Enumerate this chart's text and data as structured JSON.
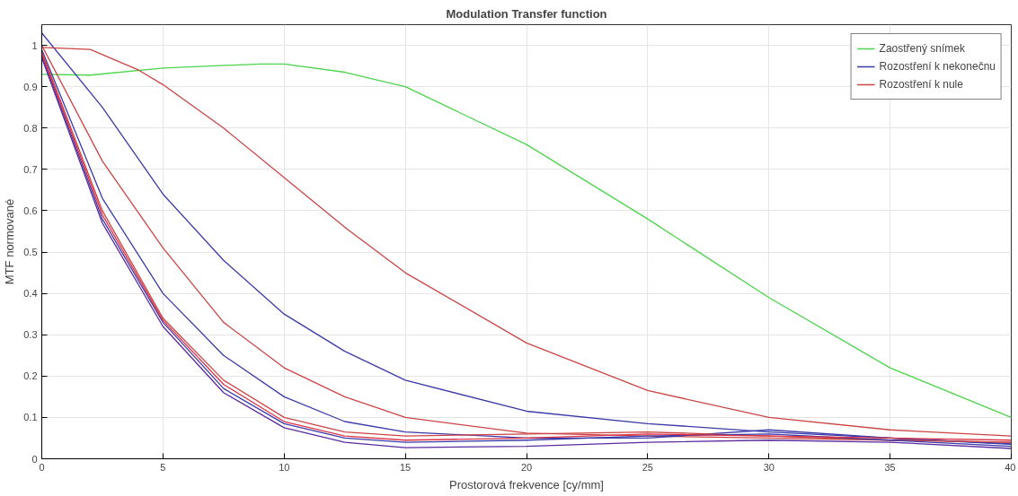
{
  "chart_data": {
    "type": "line",
    "title": "Modulation Transfer function",
    "xlabel": "Prostorová frekvence [cy/mm]",
    "ylabel": "MTF normované",
    "x": [
      0,
      2.5,
      5,
      7.5,
      10,
      12.5,
      15,
      20,
      25,
      30,
      35,
      40
    ],
    "series": [
      {
        "name": "Zaostřený snímek",
        "color": "#4cd44c",
        "x": [
          0,
          2,
          5,
          9,
          10,
          12.5,
          15,
          20,
          25,
          30,
          35,
          40
        ],
        "values": [
          0.93,
          0.928,
          0.945,
          0.955,
          0.955,
          0.935,
          0.9,
          0.76,
          0.58,
          0.39,
          0.22,
          0.1
        ]
      },
      {
        "name": "Rozostření k nekonečnu",
        "color": "#3a3aaa",
        "values": [
          1.03,
          0.85,
          0.64,
          0.48,
          0.35,
          0.26,
          0.19,
          0.115,
          0.085,
          0.065,
          0.05,
          0.035
        ]
      },
      {
        "name": "Rozostření k nule",
        "color": "#cc4444",
        "x": [
          0,
          2,
          4,
          5,
          7.5,
          10,
          12.5,
          15,
          20,
          25,
          30,
          35,
          40
        ],
        "values": [
          0.995,
          0.99,
          0.94,
          0.905,
          0.8,
          0.68,
          0.56,
          0.45,
          0.28,
          0.165,
          0.1,
          0.07,
          0.055
        ]
      },
      {
        "color": "#cc4444",
        "values": [
          1.0,
          0.72,
          0.51,
          0.33,
          0.22,
          0.15,
          0.1,
          0.062,
          0.055,
          0.05,
          0.045,
          0.04
        ]
      },
      {
        "color": "#3a3aaa",
        "values": [
          0.99,
          0.63,
          0.4,
          0.25,
          0.15,
          0.09,
          0.065,
          0.05,
          0.05,
          0.07,
          0.05,
          0.036
        ]
      },
      {
        "color": "#cc4444",
        "values": [
          0.985,
          0.6,
          0.34,
          0.19,
          0.1,
          0.065,
          0.055,
          0.06,
          0.065,
          0.055,
          0.045,
          0.04
        ]
      },
      {
        "color": "#3a3aaa",
        "values": [
          0.975,
          0.58,
          0.33,
          0.17,
          0.085,
          0.05,
          0.04,
          0.045,
          0.055,
          0.06,
          0.045,
          0.03
        ]
      },
      {
        "color": "#5a2aa0",
        "values": [
          0.97,
          0.57,
          0.32,
          0.16,
          0.075,
          0.04,
          0.027,
          0.03,
          0.04,
          0.045,
          0.04,
          0.025
        ]
      },
      {
        "color": "#dd3344",
        "values": [
          0.98,
          0.59,
          0.335,
          0.18,
          0.09,
          0.055,
          0.045,
          0.05,
          0.06,
          0.055,
          0.05,
          0.045
        ]
      }
    ],
    "xlim": [
      0,
      40
    ],
    "ylim": [
      0,
      1.05
    ],
    "xticks": [
      0,
      5,
      10,
      15,
      20,
      25,
      30,
      35,
      40
    ],
    "yticks": [
      0,
      0.1,
      0.2,
      0.3,
      0.4,
      0.5,
      0.6,
      0.7,
      0.8,
      0.9,
      1
    ],
    "grid": true,
    "legend": "top right",
    "line_style": "solid"
  }
}
